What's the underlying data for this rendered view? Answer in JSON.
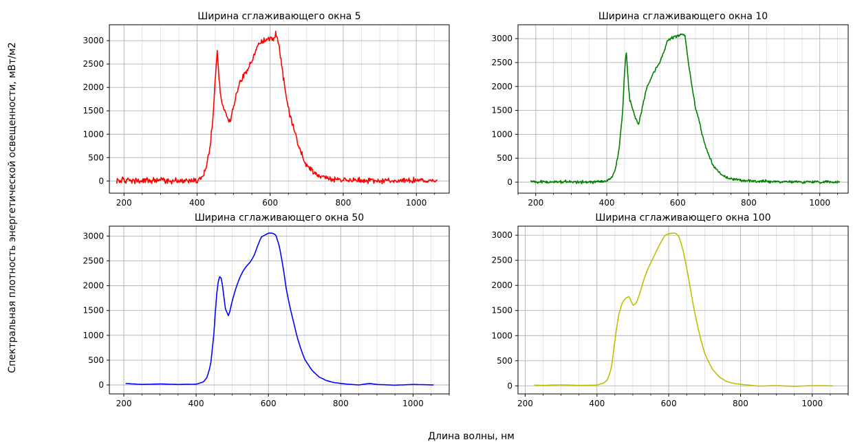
{
  "figure": {
    "xlabel": "Длина волны, нм",
    "ylabel": "Спектральная плотность энергетической освещенности, мВт/м2"
  },
  "chart_data": [
    {
      "type": "line",
      "title": "Ширина сглаживающего окна 5",
      "color": "#ff0000",
      "xlim": [
        160,
        1090
      ],
      "ylim": [
        -260,
        3340
      ],
      "xticks": [
        200,
        400,
        600,
        800,
        1000
      ],
      "yticks": [
        0,
        500,
        1000,
        1500,
        2000,
        2500,
        3000
      ],
      "grid": true,
      "minor_grid": true,
      "noise": 45,
      "x": [
        180,
        200,
        250,
        300,
        350,
        400,
        415,
        425,
        435,
        445,
        450,
        455,
        460,
        465,
        470,
        480,
        490,
        500,
        510,
        520,
        530,
        540,
        550,
        560,
        570,
        580,
        590,
        600,
        610,
        615,
        620,
        625,
        630,
        640,
        650,
        660,
        670,
        680,
        690,
        700,
        710,
        720,
        730,
        740,
        750,
        760,
        770,
        780,
        790,
        800,
        820,
        850,
        900,
        950,
        1000,
        1050,
        1058
      ],
      "y": [
        20,
        10,
        0,
        10,
        0,
        20,
        100,
        300,
        700,
        1500,
        2250,
        2780,
        2200,
        1800,
        1600,
        1400,
        1250,
        1600,
        1950,
        2150,
        2300,
        2400,
        2550,
        2800,
        2950,
        3000,
        3020,
        3050,
        3050,
        3150,
        3050,
        2850,
        2550,
        2000,
        1550,
        1250,
        950,
        700,
        500,
        350,
        250,
        180,
        130,
        100,
        80,
        60,
        45,
        35,
        30,
        25,
        20,
        15,
        10,
        5,
        10,
        5,
        0
      ]
    },
    {
      "type": "line",
      "title": "Ширина сглаживающего окна 10",
      "color": "#008000",
      "xlim": [
        150,
        1080
      ],
      "ylim": [
        -230,
        3290
      ],
      "xticks": [
        200,
        400,
        600,
        800,
        1000
      ],
      "yticks": [
        0,
        500,
        1000,
        1500,
        2000,
        2500,
        3000
      ],
      "grid": true,
      "minor_grid": true,
      "noise": 22,
      "x": [
        185,
        200,
        250,
        300,
        350,
        400,
        415,
        425,
        435,
        445,
        450,
        455,
        460,
        465,
        470,
        480,
        490,
        500,
        510,
        520,
        530,
        540,
        550,
        560,
        570,
        580,
        590,
        600,
        610,
        615,
        620,
        625,
        630,
        640,
        650,
        660,
        670,
        680,
        690,
        700,
        710,
        720,
        730,
        740,
        750,
        760,
        770,
        780,
        790,
        800,
        820,
        850,
        900,
        950,
        1000,
        1050,
        1058
      ],
      "y": [
        20,
        10,
        0,
        10,
        0,
        20,
        100,
        300,
        700,
        1500,
        2300,
        2750,
        2150,
        1700,
        1620,
        1350,
        1200,
        1550,
        1900,
        2100,
        2250,
        2400,
        2500,
        2700,
        2950,
        3000,
        3030,
        3060,
        3080,
        3100,
        3050,
        2800,
        2500,
        2000,
        1550,
        1300,
        950,
        700,
        500,
        350,
        250,
        170,
        120,
        90,
        70,
        55,
        45,
        35,
        30,
        25,
        20,
        15,
        10,
        5,
        10,
        5,
        0
      ]
    },
    {
      "type": "line",
      "title": "Ширина сглаживающего окна 50",
      "color": "#0000ff",
      "xlim": [
        160,
        1100
      ],
      "ylim": [
        -180,
        3200
      ],
      "xticks": [
        200,
        400,
        600,
        800,
        1000
      ],
      "yticks": [
        0,
        500,
        1000,
        1500,
        2000,
        2500,
        3000
      ],
      "grid": true,
      "minor_grid": true,
      "noise": 0,
      "x": [
        205,
        250,
        300,
        350,
        400,
        420,
        430,
        440,
        450,
        455,
        460,
        465,
        470,
        475,
        480,
        490,
        500,
        510,
        520,
        530,
        540,
        550,
        560,
        570,
        580,
        590,
        600,
        610,
        620,
        630,
        640,
        650,
        660,
        670,
        680,
        690,
        700,
        720,
        740,
        760,
        780,
        800,
        820,
        850,
        880,
        900,
        950,
        1000,
        1058
      ],
      "y": [
        30,
        10,
        20,
        10,
        15,
        60,
        150,
        400,
        1100,
        1700,
        2050,
        2180,
        2150,
        1900,
        1550,
        1380,
        1700,
        1950,
        2150,
        2300,
        2400,
        2480,
        2600,
        2800,
        2980,
        3020,
        3060,
        3060,
        3030,
        2800,
        2400,
        1900,
        1550,
        1250,
        950,
        720,
        520,
        300,
        160,
        90,
        50,
        30,
        15,
        0,
        30,
        10,
        -5,
        10,
        0
      ]
    },
    {
      "type": "line",
      "title": "Ширина сглаживающего окна 100",
      "color": "#bfbf00",
      "xlim": [
        180,
        1100
      ],
      "ylim": [
        -160,
        3180
      ],
      "xticks": [
        200,
        400,
        600,
        800,
        1000
      ],
      "yticks": [
        0,
        500,
        1000,
        1500,
        2000,
        2500,
        3000
      ],
      "grid": true,
      "minor_grid": true,
      "noise": 0,
      "x": [
        225,
        250,
        300,
        350,
        400,
        420,
        430,
        440,
        450,
        460,
        470,
        480,
        490,
        500,
        510,
        520,
        530,
        540,
        550,
        560,
        570,
        580,
        590,
        600,
        610,
        620,
        630,
        640,
        650,
        660,
        670,
        680,
        690,
        700,
        720,
        740,
        760,
        780,
        800,
        830,
        850,
        900,
        950,
        1000,
        1058
      ],
      "y": [
        15,
        10,
        20,
        10,
        15,
        60,
        130,
        350,
        900,
        1400,
        1650,
        1750,
        1780,
        1600,
        1650,
        1850,
        2100,
        2300,
        2450,
        2600,
        2750,
        2880,
        3000,
        3030,
        3040,
        3040,
        2950,
        2700,
        2350,
        1950,
        1550,
        1200,
        900,
        650,
        350,
        180,
        90,
        50,
        30,
        10,
        -5,
        5,
        -10,
        5,
        0
      ]
    }
  ]
}
